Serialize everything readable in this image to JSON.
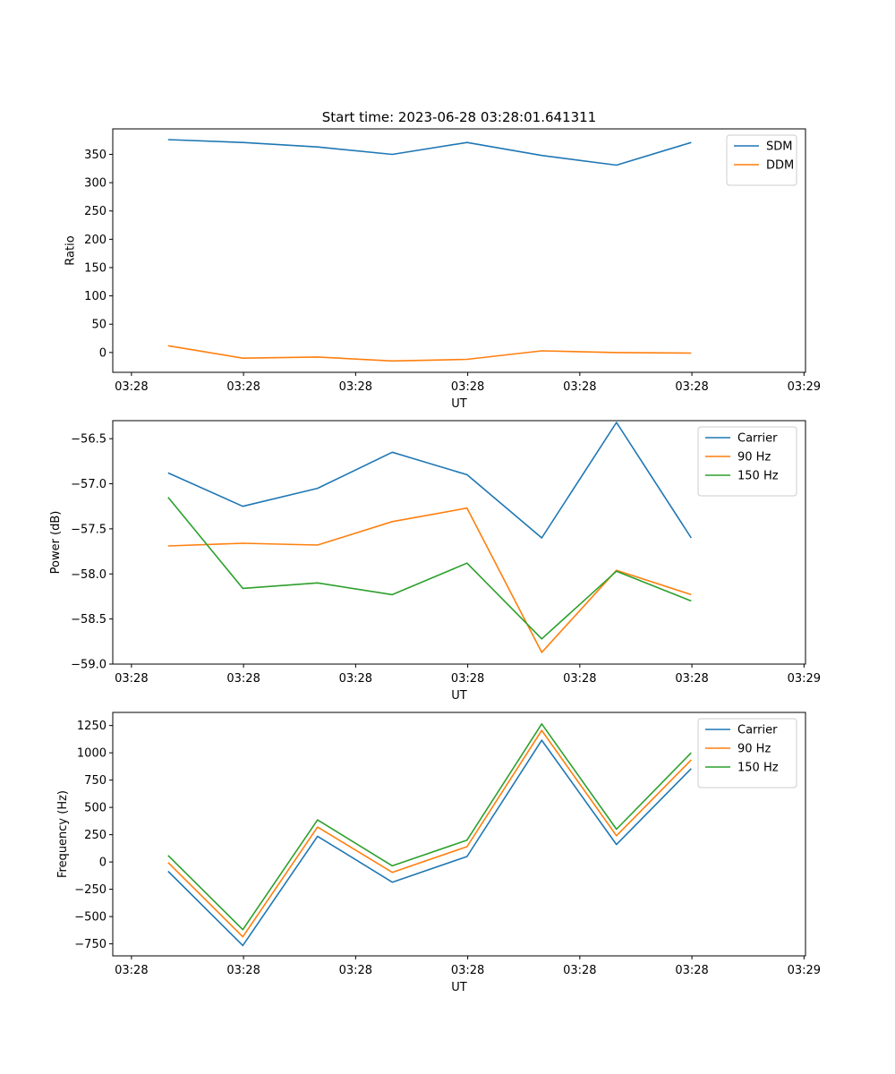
{
  "figure": {
    "title": "Start time: 2023-06-28 03:28:01.641311"
  },
  "chart_data": [
    {
      "type": "line",
      "title": "Start time: 2023-06-28 03:28:01.641311",
      "xlabel": "UT",
      "ylabel": "Ratio",
      "x": [
        1.64,
        2.64,
        3.64,
        4.64,
        5.64,
        6.64,
        7.64,
        8.64
      ],
      "xlim": [
        0.9,
        10.17
      ],
      "x_ticks": [
        1.15,
        2.65,
        4.15,
        5.65,
        7.15,
        8.65,
        10.15
      ],
      "x_tick_labels": [
        "03:28",
        "03:28",
        "03:28",
        "03:28",
        "03:28",
        "03:28",
        "03:29"
      ],
      "ylim": [
        -35,
        395
      ],
      "y_ticks": [
        0,
        50,
        100,
        150,
        200,
        250,
        300,
        350
      ],
      "y_tick_labels": [
        "0",
        "50",
        "100",
        "150",
        "200",
        "250",
        "300",
        "350"
      ],
      "legend": "top-right",
      "grid": false,
      "series": [
        {
          "name": "SDM",
          "color": "#1f77b4",
          "values": [
            376,
            371,
            363,
            350,
            371,
            348,
            331,
            371
          ]
        },
        {
          "name": "DDM",
          "color": "#ff7f0e",
          "values": [
            12,
            -10,
            -8,
            -15,
            -12,
            3,
            0,
            -1
          ]
        }
      ]
    },
    {
      "type": "line",
      "xlabel": "UT",
      "ylabel": "Power (dB)",
      "x": [
        1.64,
        2.64,
        3.64,
        4.64,
        5.64,
        6.64,
        7.64,
        8.64
      ],
      "xlim": [
        0.9,
        10.17
      ],
      "x_ticks": [
        1.15,
        2.65,
        4.15,
        5.65,
        7.15,
        8.65,
        10.15
      ],
      "x_tick_labels": [
        "03:28",
        "03:28",
        "03:28",
        "03:28",
        "03:28",
        "03:28",
        "03:29"
      ],
      "ylim": [
        -59.0,
        -56.3
      ],
      "y_ticks": [
        -59.0,
        -58.5,
        -58.0,
        -57.5,
        -57.0,
        -56.5
      ],
      "y_tick_labels": [
        "−59.0",
        "−58.5",
        "−58.0",
        "−57.5",
        "−57.0",
        "−56.5"
      ],
      "legend": "top-right",
      "grid": false,
      "series": [
        {
          "name": "Carrier",
          "color": "#1f77b4",
          "values": [
            -56.88,
            -57.25,
            -57.05,
            -56.65,
            -56.9,
            -57.6,
            -56.32,
            -57.6
          ]
        },
        {
          "name": "90 Hz",
          "color": "#ff7f0e",
          "values": [
            -57.69,
            -57.66,
            -57.68,
            -57.42,
            -57.27,
            -58.87,
            -57.96,
            -58.23
          ]
        },
        {
          "name": "150 Hz",
          "color": "#2ca02c",
          "values": [
            -57.15,
            -58.16,
            -58.1,
            -58.23,
            -57.88,
            -58.72,
            -57.97,
            -58.3
          ]
        }
      ]
    },
    {
      "type": "line",
      "xlabel": "UT",
      "ylabel": "Frequency (Hz)",
      "x": [
        1.64,
        2.64,
        3.64,
        4.64,
        5.64,
        6.64,
        7.64,
        8.64
      ],
      "xlim": [
        0.9,
        10.17
      ],
      "x_ticks": [
        1.15,
        2.65,
        4.15,
        5.65,
        7.15,
        8.65,
        10.15
      ],
      "x_tick_labels": [
        "03:28",
        "03:28",
        "03:28",
        "03:28",
        "03:28",
        "03:28",
        "03:29"
      ],
      "ylim": [
        -860,
        1370
      ],
      "y_ticks": [
        -750,
        -500,
        -250,
        0,
        250,
        500,
        750,
        1000,
        1250
      ],
      "y_tick_labels": [
        "−750",
        "−500",
        "−250",
        "0",
        "250",
        "500",
        "750",
        "1000",
        "1250"
      ],
      "legend": "top-right",
      "grid": false,
      "series": [
        {
          "name": "Carrier",
          "color": "#1f77b4",
          "values": [
            -85,
            -765,
            235,
            -185,
            50,
            1115,
            160,
            855
          ]
        },
        {
          "name": "90 Hz",
          "color": "#ff7f0e",
          "values": [
            -5,
            -685,
            320,
            -95,
            140,
            1205,
            240,
            935
          ]
        },
        {
          "name": "150 Hz",
          "color": "#2ca02c",
          "values": [
            60,
            -620,
            385,
            -35,
            200,
            1265,
            300,
            1000
          ]
        }
      ]
    }
  ]
}
